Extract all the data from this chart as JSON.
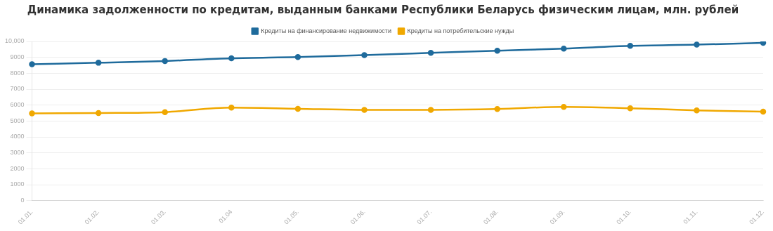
{
  "chart_data": {
    "type": "line",
    "title": "Динамика задолженности по кредитам, выданным банками Республики Беларусь физическим лицам, млн. рублей",
    "categories": [
      "01.01.",
      "01.02.",
      "01.03.",
      "01.04",
      "01.05.",
      "01.06.",
      "01.07.",
      "01.08.",
      "01.09.",
      "01.10.",
      "01.11.",
      "01.12."
    ],
    "series": [
      {
        "name": "Кредиты на финансирование недвижимости",
        "color": "#1f6b9c",
        "values": [
          8570,
          8660,
          8770,
          8940,
          9020,
          9140,
          9280,
          9420,
          9550,
          9720,
          9800,
          9910
        ]
      },
      {
        "name": "Кредиты на потребительские нужды",
        "color": "#f0a800",
        "values": [
          5480,
          5500,
          5560,
          5840,
          5770,
          5700,
          5700,
          5750,
          5890,
          5800,
          5670,
          5590
        ]
      }
    ],
    "ylim": [
      0,
      10000
    ],
    "yticks": [
      0,
      1000,
      2000,
      3000,
      4000,
      5000,
      6000,
      7000,
      8000,
      9000,
      {
        "value": 10000,
        "label": "10,000"
      }
    ],
    "grid": "y",
    "legend": "top",
    "marker": "circle",
    "line_style": "solid"
  }
}
